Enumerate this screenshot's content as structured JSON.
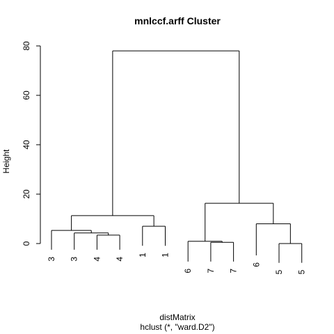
{
  "chart_data": {
    "type": "dendrogram",
    "title": "mnlccf.arff Cluster",
    "xlabel": "distMatrix",
    "subtitle": "hclust (*, \"ward.D2\")",
    "ylabel": "Height",
    "ylim": [
      0,
      80
    ],
    "yticks": [
      0,
      20,
      40,
      60,
      80
    ],
    "leaves": [
      "3",
      "3",
      "4",
      "4",
      "1",
      "1",
      "6",
      "7",
      "7",
      "6",
      "5",
      "5"
    ],
    "merges": [
      {
        "id": "m1",
        "left": "L9",
        "right": "L10",
        "height": 0.0
      },
      {
        "id": "m2",
        "left": "L6",
        "right": "L7",
        "height": 0.5
      },
      {
        "id": "m3",
        "left": "L5",
        "right": "m2",
        "height": 0.9
      },
      {
        "id": "m4",
        "left": "L2",
        "right": "L3",
        "height": 3.4
      },
      {
        "id": "m5",
        "left": "L1",
        "right": "m4",
        "height": 4.3
      },
      {
        "id": "m6",
        "left": "L0",
        "right": "m5",
        "height": 5.3
      },
      {
        "id": "m7",
        "left": "L4",
        "right": "L5x",
        "height": 7.0
      },
      {
        "id": "m8",
        "left": "L8",
        "right": "m1",
        "height": 8.0
      },
      {
        "id": "m9",
        "left": "m6",
        "right": "m7",
        "height": 11.3
      },
      {
        "id": "m10",
        "left": "m3",
        "right": "m8",
        "height": 16.3
      },
      {
        "id": "m11",
        "left": "m9",
        "right": "m10",
        "height": 78.0
      }
    ],
    "leaf_heights": [
      -2.5,
      -2.5,
      -2.5,
      -2.5,
      -0.9,
      -0.9,
      -7.3,
      -7.3,
      -7.3,
      -4.8,
      -7.8,
      -7.8
    ]
  }
}
